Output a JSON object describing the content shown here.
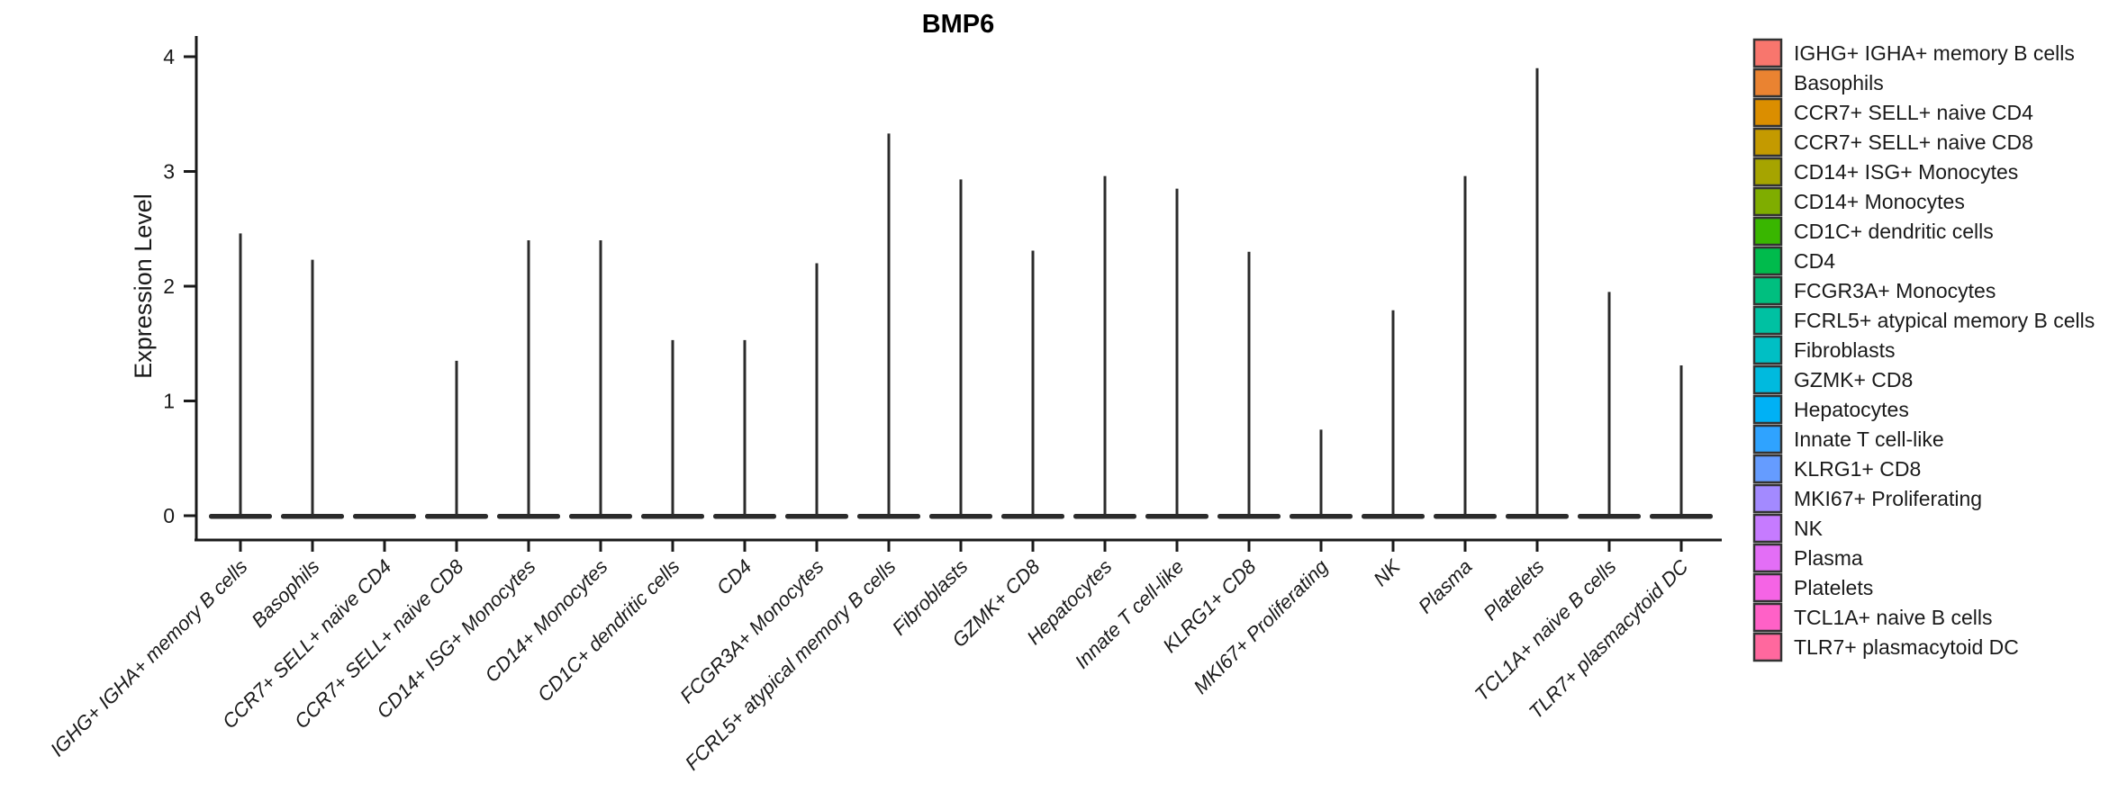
{
  "chart_data": {
    "type": "violin",
    "title": "BMP6",
    "xlabel": "",
    "ylabel": "Expression Level",
    "ylim": [
      0,
      4
    ],
    "yticks": [
      0,
      1,
      2,
      3,
      4
    ],
    "grid": false,
    "legend_position": "right",
    "note": "Seurat-style single-gene violin plot; each violin is collapsed at 0 with a thin spike to its maximum expression value",
    "colors": {
      "axis": "#1a1a1a",
      "violin": "#2b2b2b",
      "text": "#1a1a1a",
      "background": "#ffffff",
      "legend_swatch_border": "#333333"
    },
    "categories": [
      {
        "label": "IGHG+ IGHA+ memory B cells",
        "legend_label": " IGHG+ IGHA+ memory B cells",
        "color": "#F8766D",
        "max_expression": 2.46
      },
      {
        "label": "Basophils",
        "legend_label": "Basophils",
        "color": "#EA8331",
        "max_expression": 2.23
      },
      {
        "label": "CCR7+ SELL+ naive CD4",
        "legend_label": "CCR7+ SELL+ naive CD4",
        "color": "#DB8E00",
        "max_expression": 0.0
      },
      {
        "label": "CCR7+ SELL+ naive CD8",
        "legend_label": "CCR7+ SELL+ naive CD8",
        "color": "#C49A00",
        "max_expression": 1.35
      },
      {
        "label": "CD14+ ISG+ Monocytes",
        "legend_label": "CD14+ ISG+ Monocytes",
        "color": "#A6A400",
        "max_expression": 2.4
      },
      {
        "label": "CD14+ Monocytes",
        "legend_label": "CD14+ Monocytes",
        "color": "#7FAD00",
        "max_expression": 2.4
      },
      {
        "label": "CD1C+ dendritic cells",
        "legend_label": "CD1C+ dendritic cells",
        "color": "#39B600",
        "max_expression": 1.53
      },
      {
        "label": "CD4",
        "legend_label": "CD4",
        "color": "#00BB4C",
        "max_expression": 1.53
      },
      {
        "label": "FCGR3A+ Monocytes",
        "legend_label": "FCGR3A+ Monocytes",
        "color": "#00BF7F",
        "max_expression": 2.2
      },
      {
        "label": "FCRL5+ atypical memory B cells",
        "legend_label": "FCRL5+ atypical memory B cells",
        "color": "#00C1A2",
        "max_expression": 3.33
      },
      {
        "label": "Fibroblasts",
        "legend_label": "Fibroblasts",
        "color": "#00BFC4",
        "max_expression": 2.93
      },
      {
        "label": "GZMK+ CD8",
        "legend_label": "GZMK+ CD8",
        "color": "#00BADE",
        "max_expression": 2.31
      },
      {
        "label": "Hepatocytes",
        "legend_label": "Hepatocytes",
        "color": "#00B1F5",
        "max_expression": 2.96
      },
      {
        "label": "Innate T cell-like",
        "legend_label": "Innate T cell-like",
        "color": "#2FA3FF",
        "max_expression": 2.85
      },
      {
        "label": "KLRG1+ CD8",
        "legend_label": "KLRG1+ CD8",
        "color": "#659CFF",
        "max_expression": 2.3
      },
      {
        "label": "MKI67+ Proliferating",
        "legend_label": "MKI67+ Proliferating",
        "color": "#A38AFF",
        "max_expression": 0.75
      },
      {
        "label": "NK",
        "legend_label": "NK",
        "color": "#C67BFF",
        "max_expression": 1.79
      },
      {
        "label": "Plasma",
        "legend_label": "Plasma",
        "color": "#E36EF6",
        "max_expression": 2.96
      },
      {
        "label": "Platelets",
        "legend_label": "Platelets",
        "color": "#F564E5",
        "max_expression": 3.9
      },
      {
        "label": "TCL1A+ naive B cells",
        "legend_label": "TCL1A+ naive B cells",
        "color": "#FF61C7",
        "max_expression": 1.95
      },
      {
        "label": "TLR7+ plasmacytoid DC",
        "legend_label": "TLR7+ plasmacytoid DC",
        "color": "#FF689E",
        "max_expression": 1.31
      }
    ]
  }
}
